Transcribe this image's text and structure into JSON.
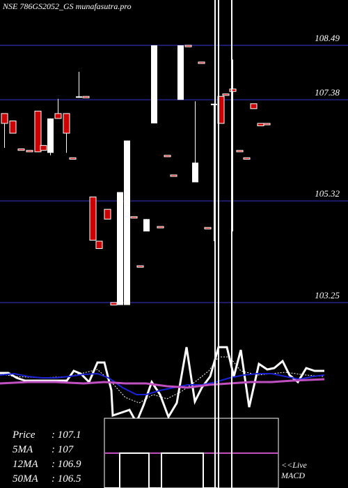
{
  "header": {
    "title": "NSE 786GS2052_GS munafasutra.pro"
  },
  "stats": {
    "price_label": "Price",
    "price_value": "107.1",
    "ma5_label": "5MA",
    "ma5_value": "107",
    "ma12_label": "12MA",
    "ma12_value": "106.9",
    "ma50_label": "50MA",
    "ma50_value": "106.5"
  },
  "macd_label": {
    "line1": "<<Live",
    "line2": "MACD"
  },
  "colors": {
    "background": "#000000",
    "grid": "#1c1c6b",
    "up": "#ffffff",
    "down": "#cc0000",
    "ma_fast": "#1a22d8",
    "ma_slow": "#c050c0",
    "price_line": "#ffffff",
    "highlight": "#ffffff"
  },
  "chart_data": {
    "type": "candlestick",
    "y_ticks": [
      103.25,
      105.32,
      107.38,
      108.49
    ],
    "ylim": [
      102.2,
      109.2
    ],
    "grid": true,
    "candles": [
      {
        "x": 2,
        "o": 107.1,
        "h": 107.1,
        "l": 106.4,
        "c": 106.9
      },
      {
        "x": 14,
        "o": 106.95,
        "h": 106.95,
        "l": 106.7,
        "c": 106.7
      },
      {
        "x": 26,
        "o": 106.38,
        "h": 106.38,
        "l": 106.35,
        "c": 106.35
      },
      {
        "x": 38,
        "o": 106.35,
        "h": 106.35,
        "l": 106.32,
        "c": 106.32
      },
      {
        "x": 50,
        "o": 107.15,
        "h": 107.15,
        "l": 106.32,
        "c": 106.32
      },
      {
        "x": 58,
        "o": 106.45,
        "h": 106.45,
        "l": 106.35,
        "c": 106.35
      },
      {
        "x": 68,
        "o": 106.3,
        "h": 107.0,
        "l": 106.25,
        "c": 107.0
      },
      {
        "x": 79,
        "o": 107.1,
        "h": 107.4,
        "l": 107.0,
        "c": 107.0
      },
      {
        "x": 91,
        "o": 107.1,
        "h": 107.1,
        "l": 106.3,
        "c": 106.7
      },
      {
        "x": 100,
        "o": 106.2,
        "h": 106.2,
        "l": 106.17,
        "c": 106.17
      },
      {
        "x": 109,
        "o": 107.45,
        "h": 107.95,
        "l": 107.42,
        "c": 107.45
      },
      {
        "x": 119,
        "o": 107.45,
        "h": 107.45,
        "l": 107.42,
        "c": 107.42
      },
      {
        "x": 129,
        "o": 105.4,
        "h": 105.4,
        "l": 104.52,
        "c": 104.52
      },
      {
        "x": 138,
        "o": 104.5,
        "h": 104.5,
        "l": 104.35,
        "c": 104.35
      },
      {
        "x": 150,
        "o": 105.15,
        "h": 105.15,
        "l": 104.95,
        "c": 104.95
      },
      {
        "x": 159,
        "o": 103.25,
        "h": 103.25,
        "l": 103.2,
        "c": 103.2
      },
      {
        "x": 168,
        "o": 103.2,
        "h": 105.5,
        "l": 103.2,
        "c": 105.5
      },
      {
        "x": 178,
        "o": 103.2,
        "h": 106.55,
        "l": 103.2,
        "c": 106.55
      },
      {
        "x": 188,
        "o": 105.0,
        "h": 105.0,
        "l": 104.97,
        "c": 104.97
      },
      {
        "x": 197,
        "o": 104.0,
        "h": 104.0,
        "l": 103.97,
        "c": 103.97
      },
      {
        "x": 206,
        "o": 104.7,
        "h": 104.95,
        "l": 104.7,
        "c": 104.95
      },
      {
        "x": 217,
        "o": 106.9,
        "h": 108.49,
        "l": 106.9,
        "c": 108.49
      },
      {
        "x": 226,
        "o": 104.8,
        "h": 104.8,
        "l": 104.77,
        "c": 104.77
      },
      {
        "x": 236,
        "o": 106.25,
        "h": 106.25,
        "l": 106.22,
        "c": 106.22
      },
      {
        "x": 245,
        "o": 105.85,
        "h": 105.85,
        "l": 105.82,
        "c": 105.82
      },
      {
        "x": 255,
        "o": 107.38,
        "h": 108.49,
        "l": 107.38,
        "c": 108.49
      },
      {
        "x": 266,
        "o": 108.49,
        "h": 108.49,
        "l": 108.46,
        "c": 108.46
      },
      {
        "x": 276,
        "o": 105.7,
        "h": 107.35,
        "l": 105.7,
        "c": 106.1
      },
      {
        "x": 285,
        "o": 108.15,
        "h": 108.15,
        "l": 108.12,
        "c": 108.12
      },
      {
        "x": 294,
        "o": 104.78,
        "h": 104.78,
        "l": 104.75,
        "c": 104.75
      },
      {
        "x": 303,
        "o": 107.3,
        "h": 107.3,
        "l": 104.5,
        "c": 107.3
      },
      {
        "x": 313,
        "o": 107.45,
        "h": 107.45,
        "l": 106.9,
        "c": 106.9
      },
      {
        "x": 320,
        "o": 107.5,
        "h": 107.5,
        "l": 107.47,
        "c": 107.47
      },
      {
        "x": 330,
        "o": 107.6,
        "h": 108.2,
        "l": 104.7,
        "c": 107.55
      },
      {
        "x": 340,
        "o": 106.35,
        "h": 106.35,
        "l": 106.32,
        "c": 106.32
      },
      {
        "x": 350,
        "o": 106.2,
        "h": 106.2,
        "l": 106.17,
        "c": 106.17
      },
      {
        "x": 360,
        "o": 107.3,
        "h": 107.3,
        "l": 107.2,
        "c": 107.2
      },
      {
        "x": 370,
        "o": 106.9,
        "h": 106.9,
        "l": 106.85,
        "c": 106.85
      },
      {
        "x": 379,
        "o": 106.9,
        "h": 106.9,
        "l": 106.87,
        "c": 106.87
      }
    ]
  }
}
